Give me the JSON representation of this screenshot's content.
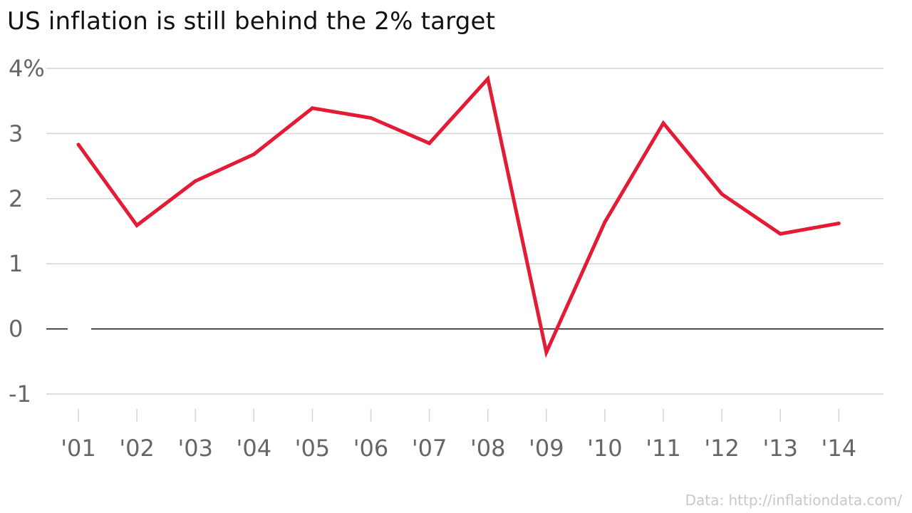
{
  "chart_data": {
    "type": "line",
    "title": "US inflation is still behind the 2% target",
    "xlabel": "",
    "ylabel": "",
    "categories": [
      "'01",
      "'02",
      "'03",
      "'04",
      "'05",
      "'06",
      "'07",
      "'08",
      "'09",
      "'10",
      "'11",
      "'12",
      "'13",
      "'14"
    ],
    "series": [
      {
        "values": [
          2.83,
          1.59,
          2.27,
          2.68,
          3.39,
          3.24,
          2.85,
          3.84,
          -0.36,
          1.64,
          3.16,
          2.07,
          1.46,
          1.62
        ]
      }
    ],
    "yticks": [
      -1,
      0,
      1,
      2,
      3,
      4
    ],
    "ytick_labels": [
      "-1",
      "0",
      "1",
      "2",
      "3",
      "4%"
    ],
    "ylim": [
      -1,
      4
    ],
    "grid": true,
    "source": "Data: http://inflationdata.com/",
    "colors": {
      "line": "#e31b35",
      "grid": "#d4d4d4",
      "zero_line": "#111111",
      "tick_text": "#666666",
      "source_text": "#c8c8c8"
    }
  }
}
